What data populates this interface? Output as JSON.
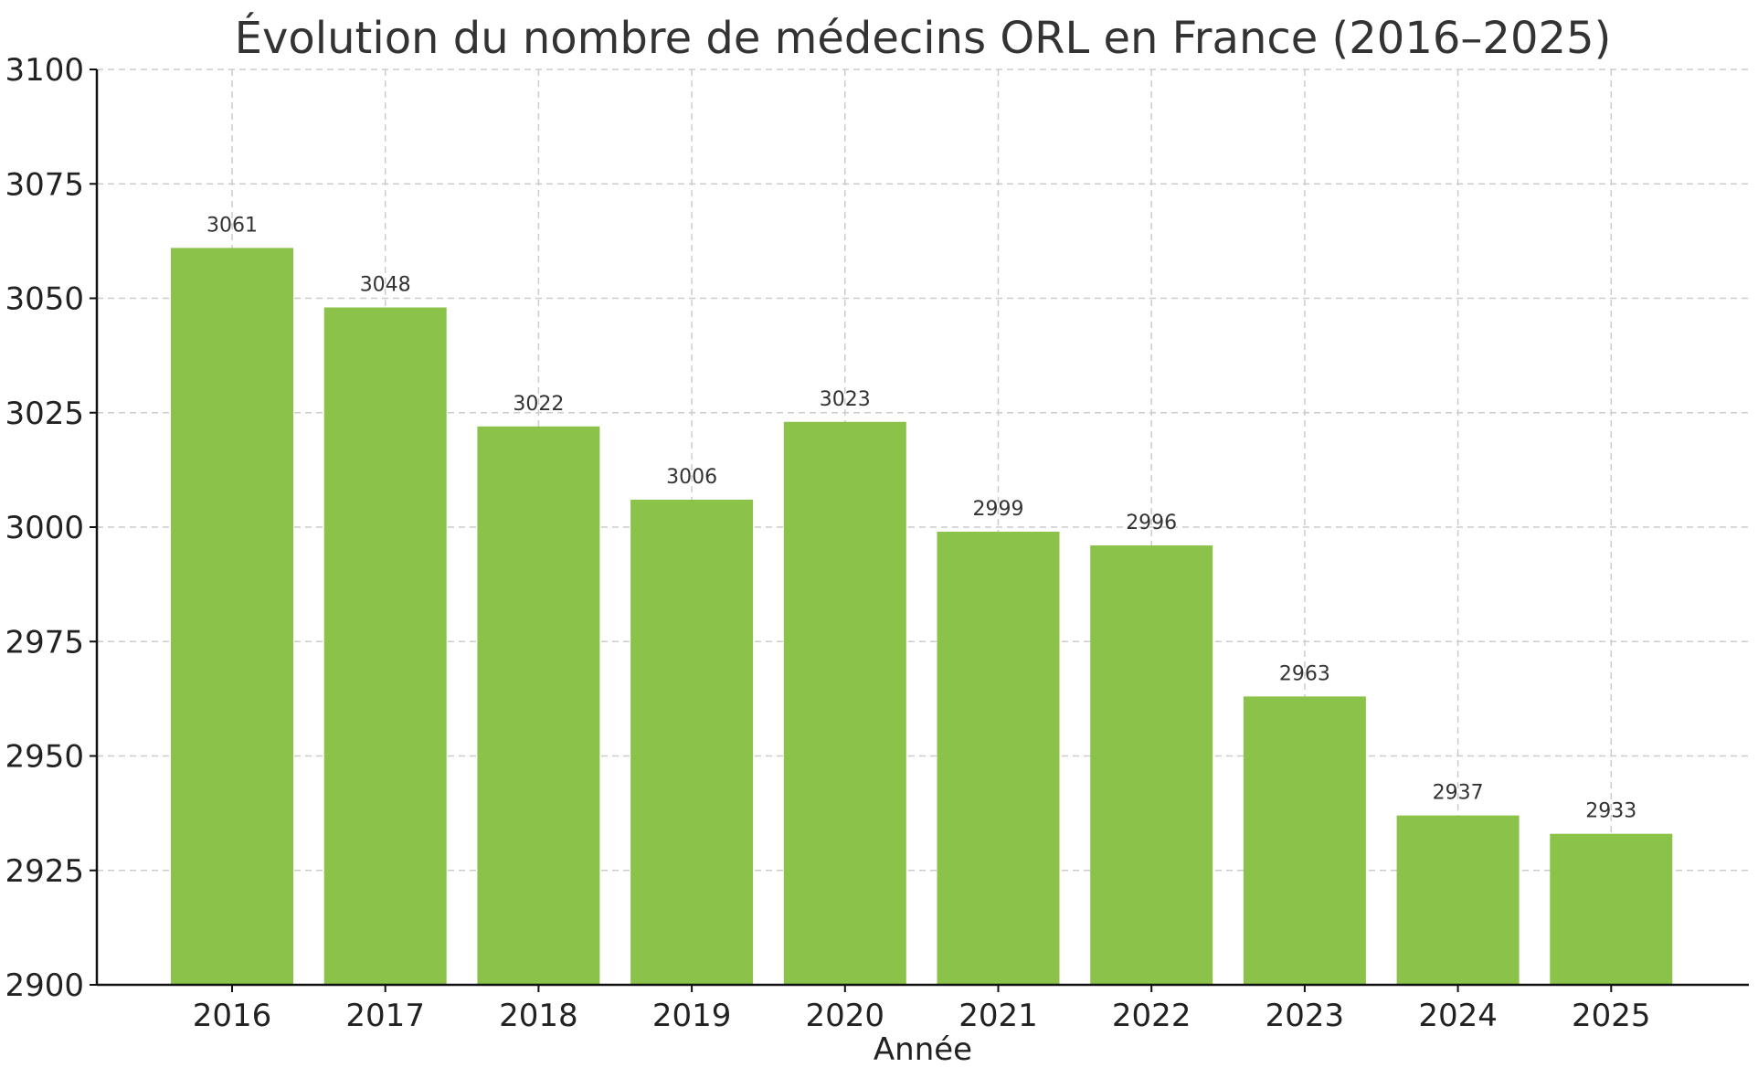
{
  "chart_data": {
    "type": "bar",
    "title": "Évolution du nombre de médecins ORL en France (2016–2025)",
    "xlabel": "Année",
    "ylabel": "",
    "categories": [
      "2016",
      "2017",
      "2018",
      "2019",
      "2020",
      "2021",
      "2022",
      "2023",
      "2024",
      "2025"
    ],
    "values": [
      3061,
      3048,
      3022,
      3006,
      3023,
      2999,
      2996,
      2963,
      2937,
      2933
    ],
    "ylim": [
      2900,
      3100
    ],
    "yticks": [
      2900,
      2925,
      2950,
      2975,
      3000,
      3025,
      3050,
      3075,
      3100
    ],
    "grid": true,
    "bar_color": "#8bc34a",
    "data_labels": true
  }
}
